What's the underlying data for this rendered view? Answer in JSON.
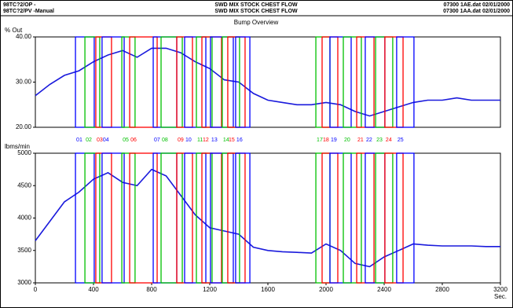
{
  "header": {
    "left": [
      "98TC?2/OP -",
      "98TC?2/PV -Manual"
    ],
    "center": [
      "SWD MIX STOCK CHEST FLOW",
      "SWD MIX STOCK CHEST FLOW"
    ],
    "right": [
      "07300 1AE.dat 02/01/2000",
      "07300 1AA.dat 02/01/2000"
    ]
  },
  "title": "Bump Overview",
  "bumps": [
    {
      "label": "01",
      "color": "#0000ff",
      "start": 276,
      "end": 405
    },
    {
      "label": "02",
      "color": "#00c000",
      "start": 341,
      "end": 443
    },
    {
      "label": "03",
      "color": "#ff0000",
      "start": 416,
      "end": 524
    },
    {
      "label": "04",
      "color": "#0000ff",
      "start": 459,
      "end": 611
    },
    {
      "label": "05",
      "color": "#00c000",
      "start": 595,
      "end": 686
    },
    {
      "label": "06",
      "color": "#ff0000",
      "start": 649,
      "end": 838
    },
    {
      "label": "07",
      "color": "#0000ff",
      "start": 811,
      "end": 973
    },
    {
      "label": "08",
      "color": "#00c000",
      "start": 865,
      "end": 1011
    },
    {
      "label": "09",
      "color": "#ff0000",
      "start": 973,
      "end": 1081
    },
    {
      "label": "10",
      "color": "#0000ff",
      "start": 1027,
      "end": 1173
    },
    {
      "label": "11",
      "color": "#00c000",
      "start": 1108,
      "end": 1216
    },
    {
      "label": "12",
      "color": "#ff0000",
      "start": 1146,
      "end": 1281
    },
    {
      "label": "13",
      "color": "#0000ff",
      "start": 1205,
      "end": 1362
    },
    {
      "label": "14",
      "color": "#00c000",
      "start": 1286,
      "end": 1405
    },
    {
      "label": "15",
      "color": "#ff0000",
      "start": 1324,
      "end": 1443
    },
    {
      "label": "16",
      "color": "#0000ff",
      "start": 1378,
      "end": 1476
    },
    {
      "label": "17",
      "color": "#00c000",
      "start": 1930,
      "end": 2027
    },
    {
      "label": "18",
      "color": "#ff0000",
      "start": 1973,
      "end": 2081
    },
    {
      "label": "19",
      "color": "#0000ff",
      "start": 2027,
      "end": 2173
    },
    {
      "label": "20",
      "color": "#00c000",
      "start": 2119,
      "end": 2243
    },
    {
      "label": "21",
      "color": "#ff0000",
      "start": 2211,
      "end": 2330
    },
    {
      "label": "22",
      "color": "#0000ff",
      "start": 2270,
      "end": 2405
    },
    {
      "label": "23",
      "color": "#00c000",
      "start": 2341,
      "end": 2459
    },
    {
      "label": "24",
      "color": "#ff0000",
      "start": 2405,
      "end": 2530
    },
    {
      "label": "25",
      "color": "#0000ff",
      "start": 2486,
      "end": 2605
    }
  ],
  "chart_data": [
    {
      "type": "line",
      "ylabel": "% Out",
      "color": "#1a1adc",
      "x": [
        0,
        100,
        200,
        300,
        400,
        500,
        600,
        700,
        800,
        900,
        1000,
        1100,
        1200,
        1300,
        1400,
        1500,
        1600,
        1700,
        1800,
        1900,
        2000,
        2100,
        2200,
        2300,
        2400,
        2500,
        2600,
        2700,
        2800,
        2900,
        3000,
        3100,
        3200
      ],
      "values": [
        27.0,
        29.5,
        31.5,
        32.5,
        34.5,
        36.0,
        37.0,
        35.5,
        37.5,
        37.5,
        36.5,
        34.5,
        33.0,
        30.5,
        30.0,
        27.5,
        26.0,
        25.5,
        25.0,
        25.0,
        25.5,
        25.0,
        23.5,
        22.5,
        23.5,
        24.5,
        25.5,
        26.0,
        26.0,
        26.5,
        26.0,
        26.0,
        26.0
      ],
      "xlim": [
        0,
        3200
      ],
      "ylim": [
        20,
        40
      ],
      "yticks": [
        {
          "value": 20,
          "label": "20.00"
        },
        {
          "value": 30,
          "label": "30.00"
        },
        {
          "value": 40,
          "label": "40.00"
        }
      ]
    },
    {
      "type": "line",
      "ylabel": "lbms/min",
      "xlabel": "Sec.",
      "color": "#1a1adc",
      "x": [
        0,
        100,
        200,
        300,
        400,
        500,
        600,
        700,
        800,
        900,
        1000,
        1100,
        1200,
        1300,
        1400,
        1500,
        1600,
        1700,
        1800,
        1900,
        2000,
        2100,
        2200,
        2300,
        2400,
        2500,
        2600,
        2700,
        2800,
        2900,
        3000,
        3100,
        3200
      ],
      "values": [
        3650,
        3950,
        4250,
        4400,
        4600,
        4700,
        4550,
        4500,
        4750,
        4650,
        4350,
        4050,
        3850,
        3800,
        3750,
        3550,
        3500,
        3480,
        3470,
        3460,
        3600,
        3500,
        3300,
        3250,
        3400,
        3500,
        3600,
        3580,
        3570,
        3570,
        3570,
        3560,
        3560
      ],
      "xlim": [
        0,
        3200
      ],
      "ylim": [
        3000,
        5000
      ],
      "xticks": [
        0,
        400,
        800,
        1200,
        1600,
        2000,
        2400,
        2800,
        3200
      ],
      "yticks": [
        3000,
        3500,
        4000,
        4500,
        5000
      ]
    }
  ]
}
